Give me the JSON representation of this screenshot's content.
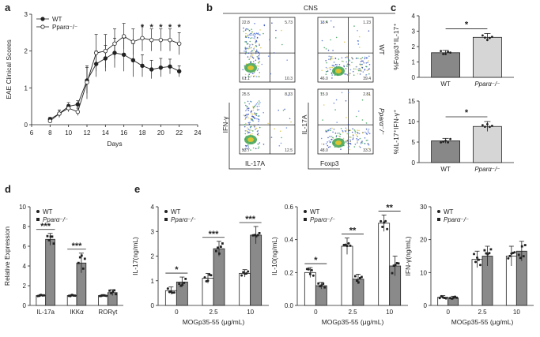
{
  "panels": {
    "a": "a",
    "b": "b",
    "c": "c",
    "d": "d",
    "e": "e"
  },
  "chart_data": [
    {
      "id": "a",
      "type": "line",
      "title": "",
      "xlabel": "Days",
      "ylabel": "EAE Clinical Scores",
      "xlim": [
        6,
        24
      ],
      "ylim": [
        0,
        3
      ],
      "xticks": [
        6,
        8,
        10,
        12,
        14,
        16,
        18,
        20,
        22,
        24
      ],
      "yticks": [
        0,
        1,
        2,
        3
      ],
      "legend": [
        "WT",
        "Pparα⁻/⁻"
      ],
      "series": [
        {
          "name": "WT",
          "marker": "filled",
          "x": [
            8,
            9,
            10,
            11,
            12,
            13,
            14,
            15,
            16,
            17,
            18,
            19,
            20,
            21,
            22
          ],
          "y": [
            0.15,
            0.3,
            0.5,
            0.55,
            1.2,
            1.65,
            1.8,
            1.95,
            1.9,
            1.75,
            1.6,
            1.5,
            1.55,
            1.58,
            1.45
          ],
          "err": [
            0.05,
            0.1,
            0.1,
            0.1,
            0.35,
            0.35,
            0.35,
            0.4,
            0.45,
            0.45,
            0.3,
            0.25,
            0.25,
            0.2,
            0.15
          ]
        },
        {
          "name": "Pparα⁻/⁻",
          "marker": "open",
          "x": [
            8,
            9,
            10,
            11,
            12,
            13,
            14,
            15,
            16,
            17,
            18,
            19,
            20,
            21,
            22
          ],
          "y": [
            0.1,
            0.3,
            0.45,
            0.35,
            1.15,
            1.95,
            2.0,
            2.2,
            2.4,
            2.25,
            2.35,
            2.3,
            2.3,
            2.3,
            2.2
          ],
          "err": [
            0.05,
            0.1,
            0.1,
            0.1,
            0.45,
            0.5,
            0.45,
            0.4,
            0.35,
            0.35,
            0.35,
            0.3,
            0.3,
            0.3,
            0.3
          ]
        }
      ],
      "annotations": [
        {
          "x": 18,
          "text": "*"
        },
        {
          "x": 19,
          "text": "*"
        },
        {
          "x": 20,
          "text": "*"
        },
        {
          "x": 21,
          "text": "*"
        },
        {
          "x": 22,
          "text": "*"
        }
      ]
    },
    {
      "id": "b",
      "type": "scatter",
      "title": "CNS",
      "plots": [
        {
          "row": "WT",
          "xlabel": "IL-17A",
          "ylabel": "IFN-γ",
          "q": {
            "ul": "22.8",
            "ur": "5.73",
            "ll": "61.1",
            "lr": "10.3"
          }
        },
        {
          "row": "WT",
          "xlabel": "Foxp3",
          "ylabel": "IL-17A",
          "q": {
            "ul": "13.4",
            "ur": "1.23",
            "ll": "46.0",
            "lr": "39.4"
          }
        },
        {
          "row": "Pparα⁻/⁻",
          "xlabel": "IL-17A",
          "ylabel": "IFN-γ",
          "q": {
            "ul": "25.5",
            "ur": "8.33",
            "ll": "53.7",
            "lr": "12.5"
          }
        },
        {
          "row": "Pparα⁻/⁻",
          "xlabel": "Foxp3",
          "ylabel": "IL-17A",
          "q": {
            "ul": "15.9",
            "ur": "2.81",
            "ll": "48.0",
            "lr": "33.3"
          }
        }
      ],
      "row_labels": [
        "WT",
        "Pparα⁻/⁻"
      ],
      "axis_labels": {
        "ifn": "IFN-γ",
        "il17": "IL-17A",
        "foxp3": "Foxp3"
      }
    },
    {
      "id": "c-top",
      "type": "bar",
      "categories": [
        "WT",
        "Pparα⁻/⁻"
      ],
      "values": [
        1.6,
        2.6
      ],
      "errors": [
        0.15,
        0.25
      ],
      "ylabel": "%Foxp3⁺IL-17⁺",
      "ylim": [
        0,
        4
      ],
      "yticks": [
        0,
        1,
        2,
        3,
        4
      ],
      "significance": "*"
    },
    {
      "id": "c-bottom",
      "type": "bar",
      "categories": [
        "WT",
        "Pparα⁻/⁻"
      ],
      "values": [
        5.3,
        8.8
      ],
      "errors": [
        0.6,
        1.2
      ],
      "ylabel": "%IL-17⁺IFN-γ⁺",
      "ylim": [
        0,
        15
      ],
      "yticks": [
        0,
        5,
        10,
        15
      ],
      "significance": "*"
    },
    {
      "id": "d",
      "type": "bar",
      "categories": [
        "IL-17a",
        "IKKα",
        "RORγt"
      ],
      "ylabel": "Relative Expression",
      "ylim": [
        0,
        10
      ],
      "yticks": [
        0,
        2,
        4,
        6,
        8,
        10
      ],
      "legend": [
        "WT",
        "Pparα⁻/⁻"
      ],
      "series": [
        {
          "name": "WT",
          "values": [
            1.0,
            1.0,
            1.0
          ],
          "errors": [
            0.1,
            0.1,
            0.1
          ]
        },
        {
          "name": "Pparα⁻/⁻",
          "values": [
            6.7,
            4.3,
            1.3
          ],
          "errors": [
            0.6,
            1.0,
            0.3
          ]
        }
      ],
      "significance": [
        "***",
        "***",
        ""
      ]
    },
    {
      "id": "e-1",
      "type": "bar",
      "categories": [
        "0",
        "2.5",
        "10"
      ],
      "xlabel": "MOGp35-55 (μg/mL)",
      "ylabel": "IL-17(ng/mL)",
      "ylim": [
        0,
        4
      ],
      "yticks": [
        0,
        1,
        2,
        3,
        4
      ],
      "legend": [
        "WT",
        "Pparα⁻/⁻"
      ],
      "series": [
        {
          "name": "WT",
          "values": [
            0.6,
            1.1,
            1.3
          ],
          "errors": [
            0.15,
            0.2,
            0.15
          ]
        },
        {
          "name": "Pparα⁻/⁻",
          "values": [
            0.95,
            2.3,
            2.85
          ],
          "errors": [
            0.2,
            0.3,
            0.35
          ]
        }
      ],
      "significance": [
        "*",
        "***",
        "***"
      ]
    },
    {
      "id": "e-2",
      "type": "bar",
      "categories": [
        "0",
        "2.5",
        "10"
      ],
      "xlabel": "MOGp35-55 (μg/mL)",
      "ylabel": "IL-10(ng/mL)",
      "ylim": [
        0,
        0.6
      ],
      "yticks": [
        0.0,
        0.2,
        0.4,
        0.6
      ],
      "legend": [
        "WT",
        "Pparα⁻/⁻"
      ],
      "series": [
        {
          "name": "WT",
          "values": [
            0.2,
            0.36,
            0.5
          ],
          "errors": [
            0.03,
            0.05,
            0.05
          ]
        },
        {
          "name": "Pparα⁻/⁻",
          "values": [
            0.12,
            0.16,
            0.24
          ],
          "errors": [
            0.02,
            0.03,
            0.06
          ]
        }
      ],
      "significance": [
        "*",
        "**",
        "**"
      ]
    },
    {
      "id": "e-3",
      "type": "bar",
      "categories": [
        "0",
        "2.5",
        "10"
      ],
      "xlabel": "MOGp35-55 (μg/mL)",
      "ylabel": "IFN-γ(ng/mL)",
      "ylim": [
        0,
        30
      ],
      "yticks": [
        0,
        10,
        20,
        30
      ],
      "legend": [
        "WT",
        "Pparα⁻/⁻"
      ],
      "series": [
        {
          "name": "WT",
          "values": [
            2.5,
            14.0,
            15.0
          ],
          "errors": [
            0.5,
            2.5,
            3.0
          ]
        },
        {
          "name": "Pparα⁻/⁻",
          "values": [
            2.3,
            15.0,
            16.5
          ],
          "errors": [
            0.5,
            3.0,
            3.0
          ]
        }
      ],
      "significance": [
        "",
        "",
        ""
      ]
    }
  ]
}
